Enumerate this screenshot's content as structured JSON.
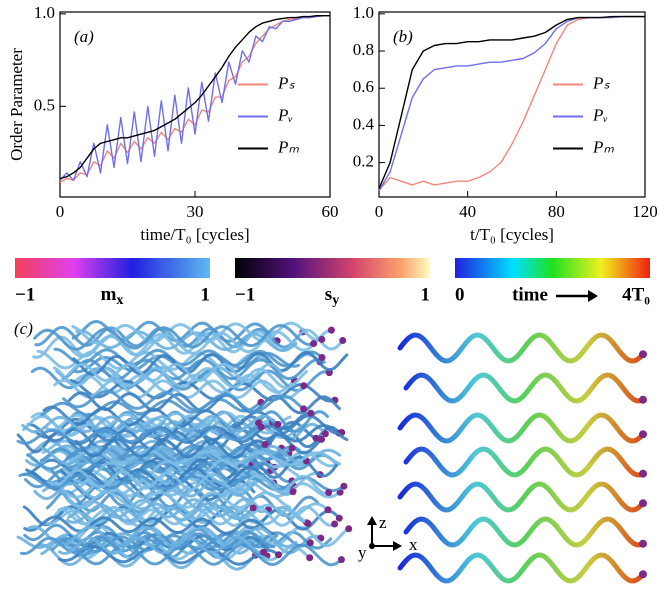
{
  "chart_data": [
    {
      "type": "line",
      "panel_label": "(a)",
      "x_label": "time/T₀ [cycles]",
      "y_label": "Order Parameter",
      "xlim": [
        0,
        60
      ],
      "xticks": [
        0,
        30,
        60
      ],
      "ylim": [
        0.01,
        1.01
      ],
      "yticks": [
        0.5,
        {
          "value": 1,
          "label": "1.0"
        }
      ],
      "legend": "center right",
      "x": [
        0,
        1.5,
        3,
        4.5,
        6,
        7.5,
        9,
        10.5,
        12,
        13.5,
        15,
        16.5,
        18,
        19.5,
        21,
        22.5,
        24,
        25.5,
        27,
        28.5,
        30,
        31.5,
        33,
        34.5,
        36,
        37.5,
        39,
        40.5,
        42,
        43.5,
        45,
        46.5,
        48,
        49.5,
        51,
        52.5,
        54,
        55.5,
        57,
        58.5,
        60
      ],
      "series": [
        {
          "name": "Pₛ",
          "color": "#f2877c",
          "values": [
            0.09,
            0.11,
            0.1,
            0.14,
            0.13,
            0.2,
            0.18,
            0.26,
            0.22,
            0.3,
            0.25,
            0.31,
            0.27,
            0.33,
            0.3,
            0.36,
            0.32,
            0.38,
            0.36,
            0.43,
            0.4,
            0.48,
            0.47,
            0.55,
            0.55,
            0.64,
            0.66,
            0.74,
            0.77,
            0.84,
            0.88,
            0.92,
            0.94,
            0.96,
            0.97,
            0.975,
            0.98,
            0.98,
            0.985,
            0.99,
            0.99
          ]
        },
        {
          "name": "Pᵥ",
          "color": "#6e6ef2",
          "values": [
            0.1,
            0.14,
            0.1,
            0.2,
            0.12,
            0.3,
            0.14,
            0.4,
            0.17,
            0.44,
            0.19,
            0.47,
            0.2,
            0.5,
            0.23,
            0.53,
            0.26,
            0.56,
            0.3,
            0.6,
            0.35,
            0.63,
            0.42,
            0.68,
            0.52,
            0.74,
            0.62,
            0.8,
            0.74,
            0.88,
            0.85,
            0.93,
            0.92,
            0.96,
            0.96,
            0.97,
            0.98,
            0.98,
            0.985,
            0.99,
            0.99
          ]
        },
        {
          "name": "Pₘ",
          "color": "#000000",
          "values": [
            0.11,
            0.12,
            0.14,
            0.17,
            0.22,
            0.27,
            0.3,
            0.31,
            0.32,
            0.33,
            0.33,
            0.34,
            0.35,
            0.36,
            0.37,
            0.39,
            0.41,
            0.43,
            0.46,
            0.49,
            0.52,
            0.56,
            0.61,
            0.66,
            0.71,
            0.77,
            0.82,
            0.86,
            0.9,
            0.93,
            0.95,
            0.96,
            0.97,
            0.975,
            0.98,
            0.98,
            0.985,
            0.985,
            0.99,
            0.99,
            0.99
          ]
        }
      ]
    },
    {
      "type": "line",
      "panel_label": "(b)",
      "x_label": "t/T₀ [cycles]",
      "xlim": [
        0,
        120
      ],
      "xticks": [
        0,
        40,
        80,
        120
      ],
      "ylim": [
        0.015,
        1.01
      ],
      "yticks": [
        0.2,
        0.4,
        0.6,
        0.8,
        {
          "value": 1,
          "label": "1.0"
        }
      ],
      "legend": "center right",
      "x": [
        0,
        5,
        10,
        15,
        20,
        25,
        30,
        35,
        40,
        45,
        50,
        55,
        60,
        65,
        70,
        75,
        80,
        85,
        90,
        95,
        100,
        105,
        110,
        115,
        120
      ],
      "series": [
        {
          "name": "Pₛ",
          "color": "#f2877c",
          "values": [
            0.05,
            0.12,
            0.1,
            0.08,
            0.1,
            0.08,
            0.09,
            0.1,
            0.1,
            0.12,
            0.15,
            0.2,
            0.3,
            0.42,
            0.56,
            0.7,
            0.84,
            0.94,
            0.97,
            0.98,
            0.98,
            0.98,
            0.985,
            0.985,
            0.985
          ]
        },
        {
          "name": "Pᵥ",
          "color": "#6e6ef2",
          "values": [
            0.05,
            0.15,
            0.35,
            0.55,
            0.65,
            0.7,
            0.71,
            0.72,
            0.72,
            0.73,
            0.74,
            0.74,
            0.75,
            0.76,
            0.79,
            0.84,
            0.92,
            0.96,
            0.98,
            0.98,
            0.98,
            0.98,
            0.985,
            0.985,
            0.985
          ]
        },
        {
          "name": "Pₘ",
          "color": "#000000",
          "values": [
            0.06,
            0.2,
            0.45,
            0.7,
            0.8,
            0.83,
            0.84,
            0.84,
            0.85,
            0.85,
            0.86,
            0.86,
            0.86,
            0.87,
            0.88,
            0.9,
            0.94,
            0.97,
            0.98,
            0.98,
            0.98,
            0.985,
            0.985,
            0.985,
            0.985
          ]
        }
      ]
    }
  ],
  "colorbars": [
    {
      "min": "−1",
      "name": [
        "m",
        "x"
      ],
      "max": "1"
    },
    {
      "min": "−1",
      "name": [
        "s",
        "y"
      ],
      "max": "1"
    },
    {
      "min": "0",
      "name": [
        "time"
      ],
      "max": "4T₀"
    }
  ],
  "panel_c": {
    "label": "(c)",
    "axis_z": "z",
    "axis_x": "x",
    "axis_y": "y"
  }
}
